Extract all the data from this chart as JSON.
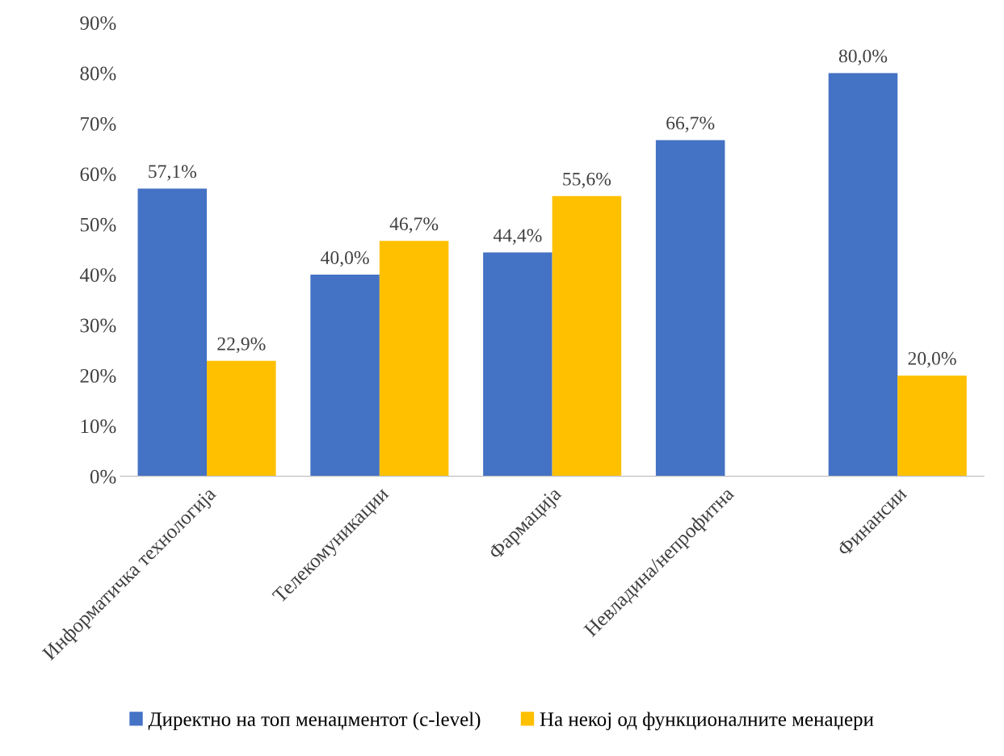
{
  "chart_data": {
    "type": "bar",
    "categories": [
      "Информатичка технологија",
      "Телекомуникации",
      "Фармација",
      "Невладина/непрофитна",
      "Финансии"
    ],
    "series": [
      {
        "name": "Директно на топ менаџментот (c-level)",
        "color": "#4472c4",
        "values": [
          57.1,
          40.0,
          44.4,
          66.7,
          80.0
        ],
        "value_labels": [
          "57,1%",
          "40,0%",
          "44,4%",
          "66,7%",
          "80,0%"
        ]
      },
      {
        "name": "На некој од функционалните менаџери",
        "color": "#ffc000",
        "values": [
          22.9,
          46.7,
          55.6,
          null,
          20.0
        ],
        "value_labels": [
          "22,9%",
          "46,7%",
          "55,6%",
          null,
          "20,0%"
        ]
      }
    ],
    "ylim": [
      0,
      90
    ],
    "yticks": [
      {
        "value": 0,
        "label": "0%"
      },
      {
        "value": 10,
        "label": "10%"
      },
      {
        "value": 20,
        "label": "20%"
      },
      {
        "value": 30,
        "label": "30%"
      },
      {
        "value": 40,
        "label": "40%"
      },
      {
        "value": 50,
        "label": "50%"
      },
      {
        "value": 60,
        "label": "60%"
      },
      {
        "value": 70,
        "label": "70%"
      },
      {
        "value": 80,
        "label": "80%"
      },
      {
        "value": 90,
        "label": "90%"
      }
    ],
    "grid": false,
    "legend": "bottom"
  }
}
